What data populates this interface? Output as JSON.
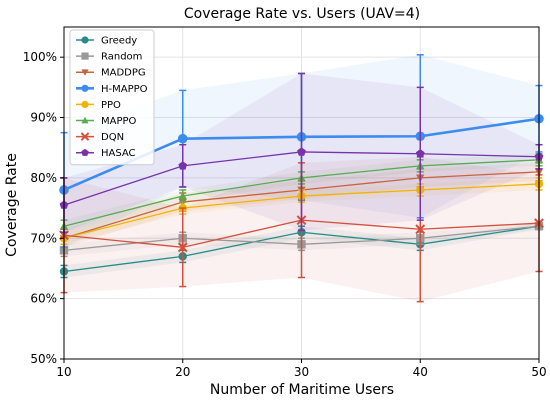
{
  "chart_data": {
    "type": "line",
    "title": "Coverage Rate vs. Users (UAV=4)",
    "xlabel": "Number of Maritime Users",
    "ylabel": "Coverage Rate",
    "x": [
      10,
      20,
      30,
      40,
      50
    ],
    "xlim": [
      10,
      50
    ],
    "ylim": [
      50,
      105
    ],
    "yticks": [
      50,
      60,
      70,
      80,
      90,
      100
    ],
    "ytick_labels": [
      "50%",
      "60%",
      "70%",
      "80%",
      "90%",
      "100%"
    ],
    "xtick_labels": [
      "10",
      "20",
      "30",
      "40",
      "50"
    ],
    "grid": true,
    "legend_position": "top-left",
    "series": [
      {
        "name": "Greedy",
        "color": "#2a8a8a",
        "marker": "circle",
        "values": [
          64.5,
          67,
          71,
          69,
          72
        ],
        "errors": [
          1.0,
          1.0,
          1.0,
          1.0,
          0.5
        ]
      },
      {
        "name": "Random",
        "color": "#999999",
        "marker": "square",
        "values": [
          68,
          70,
          69,
          70,
          72
        ],
        "errors": [
          1.0,
          1.0,
          1.0,
          1.0,
          0.5
        ]
      },
      {
        "name": "MADDPG",
        "color": "#c8643c",
        "marker": "triangle-down",
        "values": [
          70,
          76,
          78,
          80,
          81
        ],
        "errors": [
          1.5,
          1.5,
          1.5,
          1.5,
          1.5
        ]
      },
      {
        "name": "H-MAPPO",
        "color": "#3c8cf0",
        "marker": "circle",
        "values": [
          78,
          86.5,
          86.8,
          86.9,
          89.8
        ],
        "errors": [
          9.5,
          8.0,
          10.5,
          13.5,
          5.5
        ]
      },
      {
        "name": "PPO",
        "color": "#f0b400",
        "marker": "circle",
        "values": [
          70,
          75,
          77,
          78,
          79
        ],
        "errors": [
          1.0,
          1.0,
          1.0,
          1.0,
          1.0
        ]
      },
      {
        "name": "MAPPO",
        "color": "#5aaa50",
        "marker": "triangle-up",
        "values": [
          72,
          77,
          80,
          82,
          83
        ],
        "errors": [
          1.0,
          1.0,
          1.0,
          1.0,
          1.0
        ]
      },
      {
        "name": "DQN",
        "color": "#d2503c",
        "marker": "x",
        "values": [
          70.5,
          68.5,
          73,
          71.5,
          72.5
        ],
        "errors": [
          9.5,
          6.5,
          9.5,
          12.0,
          8.0
        ]
      },
      {
        "name": "HASAC",
        "color": "#7832aa",
        "marker": "pentagon",
        "values": [
          75.5,
          82,
          84.3,
          84,
          83.5
        ],
        "errors": [
          4.5,
          3.5,
          13.0,
          11.0,
          2.0
        ]
      }
    ]
  }
}
